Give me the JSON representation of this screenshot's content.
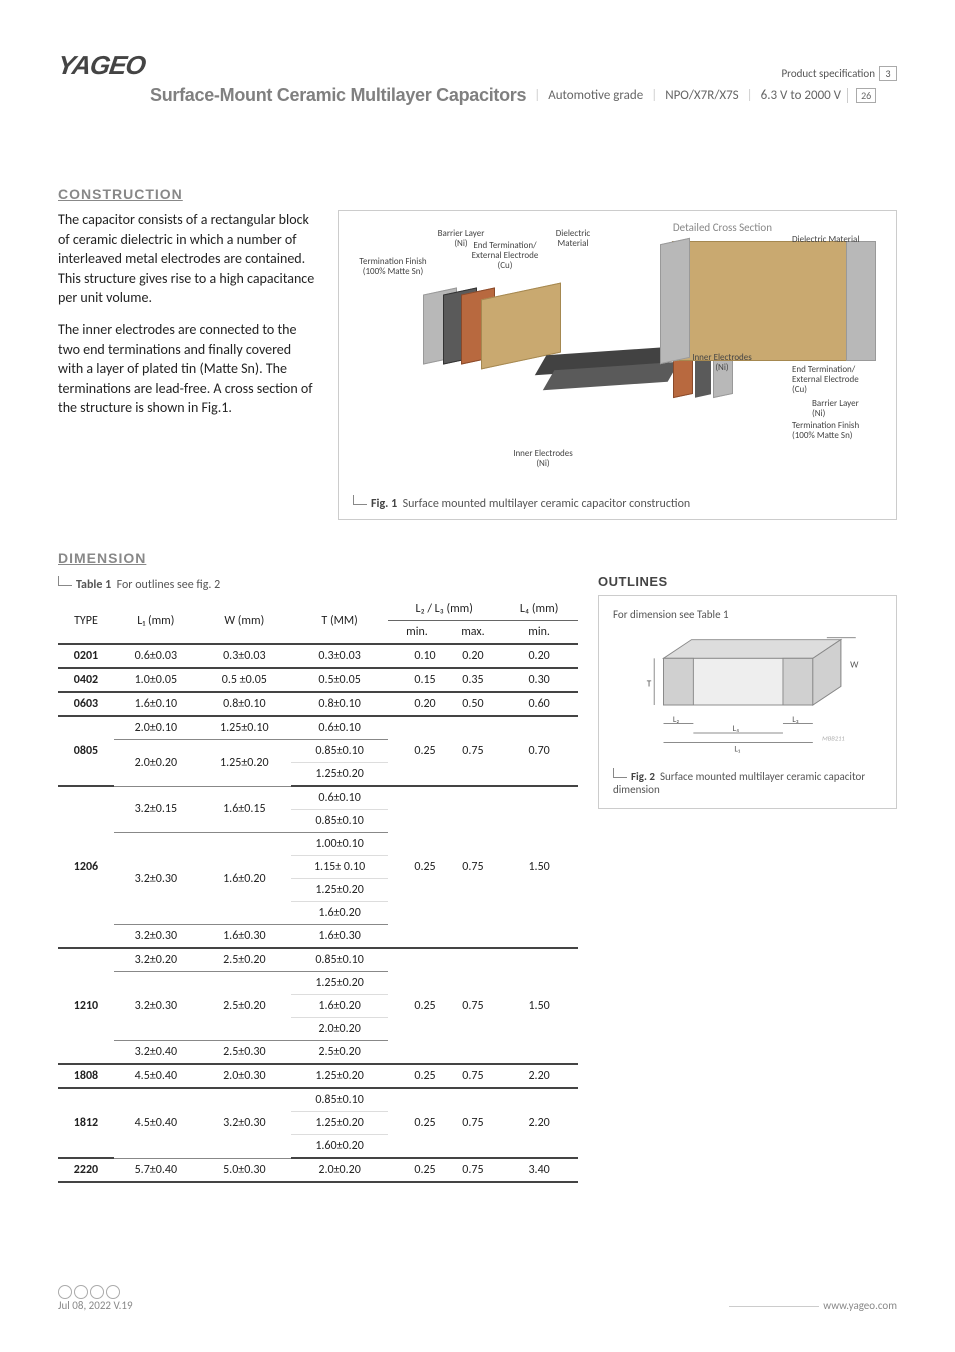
{
  "brand": "YAGEO",
  "header": {
    "prod_spec": "Product specification",
    "page_current": "3",
    "page_total": "26",
    "title": "Surface-Mount Ceramic Multilayer Capacitors",
    "grade": "Automotive grade",
    "dielectric": "NPO/X7R/X7S",
    "voltage": "6.3 V to 2000 V"
  },
  "construction": {
    "title": "CONSTRUCTION",
    "para1": "The capacitor consists of a rectangular block of ceramic dielectric in which a number of interleaved metal electrodes are contained. This structure gives rise to a high capacitance per unit volume.",
    "para2": "The inner electrodes are connected to the two end terminations and finally covered with a layer of plated tin (Matte Sn). The terminations are lead-free. A cross section of the structure is shown in Fig.1.",
    "fig_caption_label": "Fig. 1",
    "fig_caption_text": "Surface mounted multilayer ceramic capacitor construction",
    "detail_title": "Detailed Cross Section",
    "labels": {
      "termination_finish": "Termination Finish\n(100% Matte Sn)",
      "barrier_layer": "Barrier Layer\n(Ni)",
      "end_termination": "End Termination/\nExternal Electrode\n(Cu)",
      "dielectric": "Dielectric\nMaterial",
      "inner_electrodes": "Inner Electrodes\n(Ni)",
      "dielectric_material_r": "Dielectric Material"
    },
    "colors": {
      "ceramic": "#c9a970",
      "ni_barrier": "#5a5a5a",
      "sn_finish": "#b8b8b8",
      "cu_term": "#b8693f",
      "inner_dark": "#424242"
    }
  },
  "dimension": {
    "title": "DIMENSION",
    "table_label_pre": "Table 1",
    "table_label": "For outlines see fig. 2",
    "headers": {
      "type": "TYPE",
      "l1": "L₁ (mm)",
      "w": "W (mm)",
      "t": "T (MM)",
      "l23": "L₂ / L₃ (mm)",
      "l23_min": "min.",
      "l23_max": "max.",
      "l4": "L₄ (mm)",
      "l4_min": "min."
    },
    "rows": [
      {
        "type": "0201",
        "l1": "0.6±0.03",
        "w": "0.3±0.03",
        "t": [
          "0.3±0.03"
        ],
        "min": "0.10",
        "max": "0.20",
        "l4": "0.20",
        "end": true
      },
      {
        "type": "0402",
        "l1": "1.0±0.05",
        "w": "0.5 ±0.05",
        "t": [
          "0.5±0.05"
        ],
        "min": "0.15",
        "max": "0.35",
        "l4": "0.30",
        "end": true
      },
      {
        "type": "0603",
        "l1": "1.6±0.10",
        "w": "0.8±0.10",
        "t": [
          "0.8±0.10"
        ],
        "min": "0.20",
        "max": "0.50",
        "l4": "0.60",
        "end": true
      },
      {
        "type": "0805",
        "blocks": [
          {
            "l1": "2.0±0.10",
            "w": "1.25±0.10",
            "t": [
              "0.6±0.10"
            ]
          },
          {
            "l1": "2.0±0.20",
            "w": "1.25±0.20",
            "t": [
              "0.85±0.10",
              "1.25±0.20"
            ]
          }
        ],
        "min": "0.25",
        "max": "0.75",
        "l4": "0.70",
        "end": true
      },
      {
        "type": "1206",
        "blocks": [
          {
            "l1": "3.2±0.15",
            "w": "1.6±0.15",
            "t": [
              "0.6±0.10",
              "0.85±0.10"
            ]
          },
          {
            "l1": "3.2±0.30",
            "w": "1.6±0.20",
            "t": [
              "1.00±0.10",
              "1.15± 0.10",
              "1.25±0.20",
              "1.6±0.20"
            ]
          },
          {
            "l1": "3.2±0.30",
            "w": "1.6±0.30",
            "t": [
              "1.6±0.30"
            ]
          }
        ],
        "min": "0.25",
        "max": "0.75",
        "l4": "1.50",
        "end": true
      },
      {
        "type": "1210",
        "blocks": [
          {
            "l1": "3.2±0.20",
            "w": "2.5±0.20",
            "t": [
              "0.85±0.10"
            ]
          },
          {
            "l1": "3.2±0.30",
            "w": "2.5±0.20",
            "t": [
              "1.25±0.20",
              "1.6±0.20",
              "2.0±0.20"
            ]
          },
          {
            "l1": "3.2±0.40",
            "w": "2.5±0.30",
            "t": [
              "2.5±0.20"
            ]
          }
        ],
        "min": "0.25",
        "max": "0.75",
        "l4": "1.50",
        "end": true
      },
      {
        "type": "1808",
        "l1": "4.5±0.40",
        "w": "2.0±0.30",
        "t": [
          "1.25±0.20"
        ],
        "min": "0.25",
        "max": "0.75",
        "l4": "2.20",
        "end": true
      },
      {
        "type": "1812",
        "l1": "4.5±0.40",
        "w": "3.2±0.30",
        "t": [
          "0.85±0.10",
          "1.25±0.20",
          "1.60±0.20"
        ],
        "min": "0.25",
        "max": "0.75",
        "l4": "2.20",
        "end": true
      },
      {
        "type": "2220",
        "l1": "5.7±0.40",
        "w": "5.0±0.30",
        "t": [
          "2.0±0.20"
        ],
        "min": "0.25",
        "max": "0.75",
        "l4": "3.40",
        "end": true
      }
    ]
  },
  "outlines": {
    "title": "OUTLINES",
    "hint": "For dimension see Table 1",
    "fig_label": "Fig. 2",
    "fig_text": "Surface mounted multilayer ceramic capacitor dimension",
    "dim_labels": {
      "T": "T",
      "W": "W",
      "L1": "L₁",
      "L2": "L₂",
      "L3": "L₃",
      "L4": "L₄"
    },
    "ref": "MBB211"
  },
  "footer": {
    "date": "Jul 08, 2022 V.19",
    "url": "www.yageo.com"
  }
}
